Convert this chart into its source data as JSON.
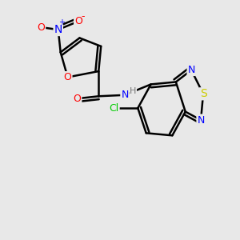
{
  "bg_color": "#e8e8e8",
  "bond_color": "#000000",
  "atom_colors": {
    "O": "#ff0000",
    "N": "#0000ff",
    "S": "#cccc00",
    "Cl": "#00cc00",
    "H": "#777777",
    "C": "#000000"
  }
}
